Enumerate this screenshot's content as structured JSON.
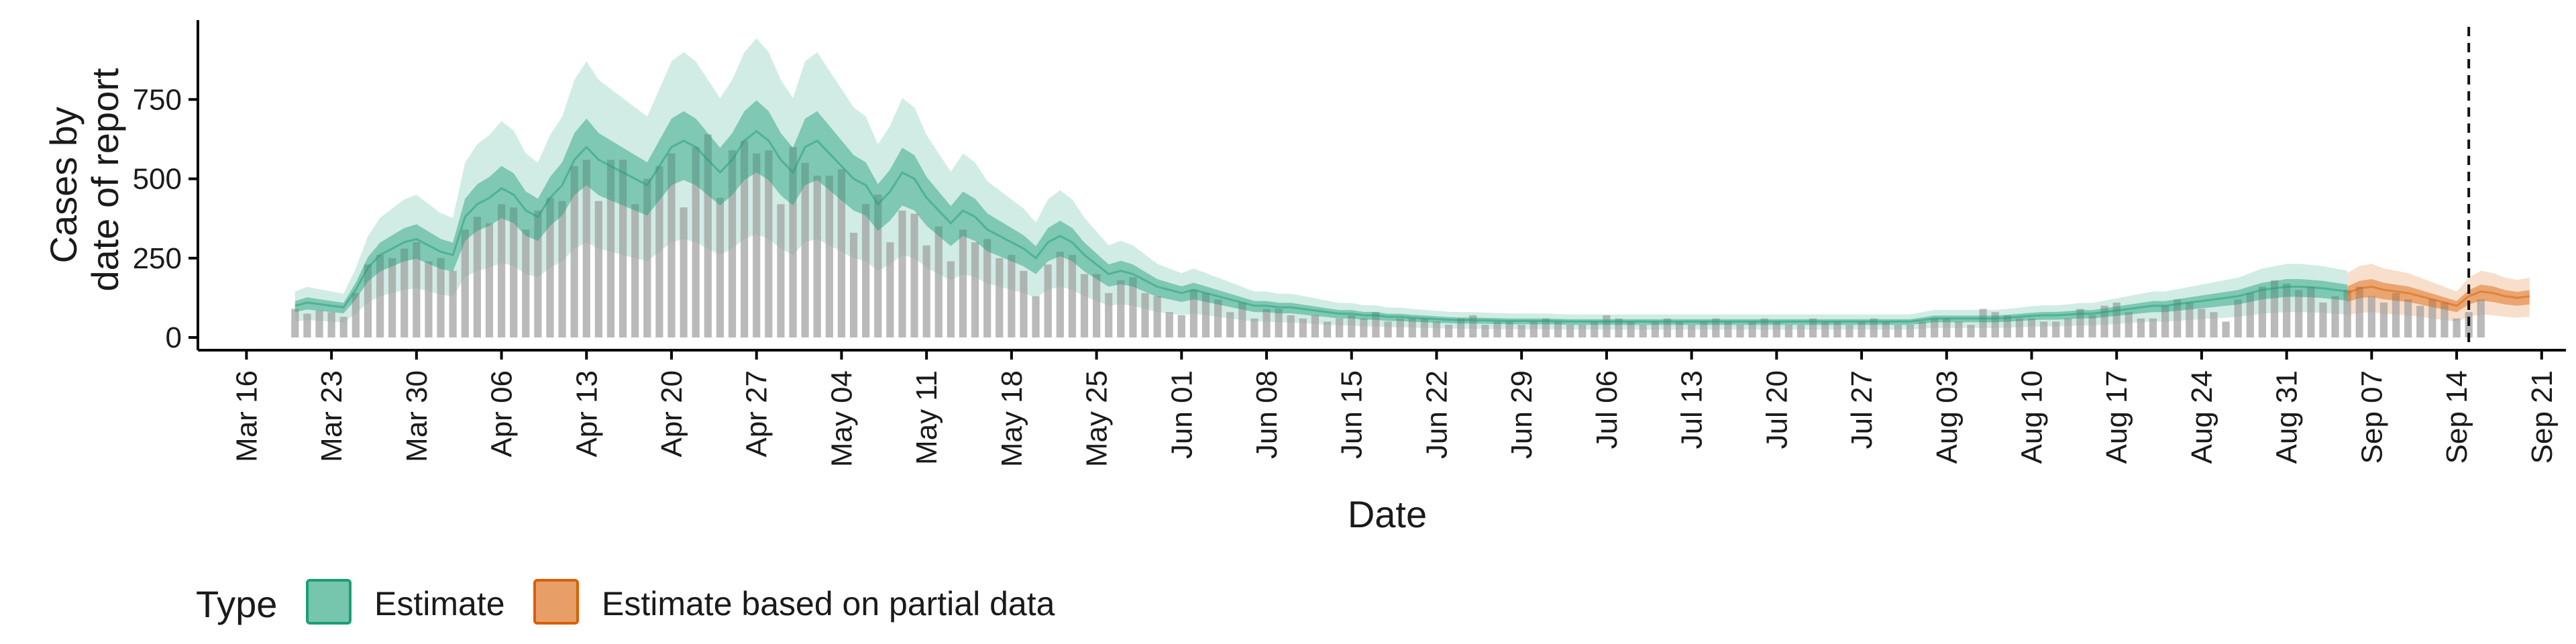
{
  "chart_data": {
    "type": "bar",
    "xlabel": "Date",
    "ylabel_lines": [
      "Cases by",
      "date of report"
    ],
    "yticks": [
      0,
      250,
      500,
      750
    ],
    "ylim": [
      -40,
      1000
    ],
    "xlim": [
      "2020-03-12",
      "2020-09-23"
    ],
    "x_tick_labels": [
      "Mar 16",
      "Mar 23",
      "Mar 30",
      "Apr 06",
      "Apr 13",
      "Apr 20",
      "Apr 27",
      "May 04",
      "May 11",
      "May 18",
      "May 25",
      "Jun 01",
      "Jun 08",
      "Jun 15",
      "Jun 22",
      "Jun 29",
      "Jul 06",
      "Jul 13",
      "Jul 20",
      "Jul 27",
      "Aug 03",
      "Aug 10",
      "Aug 17",
      "Aug 24",
      "Aug 31",
      "Sep 07",
      "Sep 14",
      "Sep 21"
    ],
    "x_tick_dates": [
      "2020-03-16",
      "2020-03-23",
      "2020-03-30",
      "2020-04-06",
      "2020-04-13",
      "2020-04-20",
      "2020-04-27",
      "2020-05-04",
      "2020-05-11",
      "2020-05-18",
      "2020-05-25",
      "2020-06-01",
      "2020-06-08",
      "2020-06-15",
      "2020-06-22",
      "2020-06-29",
      "2020-07-06",
      "2020-07-13",
      "2020-07-20",
      "2020-07-27",
      "2020-08-03",
      "2020-08-10",
      "2020-08-17",
      "2020-08-24",
      "2020-08-31",
      "2020-09-07",
      "2020-09-14",
      "2020-09-21"
    ],
    "vline_date": "2020-09-15",
    "grid": false,
    "legend_position": "bottom-left",
    "legend_title": "Type",
    "legend_items": [
      {
        "label": "Estimate",
        "color": "#1b9e77"
      },
      {
        "label": "Estimate based on partial data",
        "color": "#d95f02"
      }
    ],
    "colors": {
      "bars": "#a0a0a0",
      "estimate": "#1b9e77",
      "partial": "#d95f02"
    },
    "bars": {
      "start_date": "2020-03-20",
      "values": [
        90,
        75,
        85,
        80,
        65,
        140,
        230,
        260,
        250,
        280,
        300,
        240,
        250,
        210,
        340,
        380,
        360,
        420,
        410,
        340,
        400,
        440,
        430,
        540,
        560,
        430,
        560,
        560,
        420,
        500,
        540,
        580,
        410,
        600,
        640,
        440,
        590,
        620,
        580,
        590,
        420,
        600,
        550,
        510,
        510,
        530,
        330,
        420,
        450,
        300,
        400,
        390,
        290,
        350,
        240,
        340,
        300,
        310,
        250,
        260,
        210,
        130,
        230,
        270,
        260,
        200,
        200,
        140,
        180,
        190,
        140,
        130,
        80,
        70,
        150,
        140,
        120,
        80,
        110,
        60,
        90,
        90,
        70,
        60,
        70,
        50,
        60,
        70,
        60,
        80,
        50,
        60,
        60,
        60,
        50,
        40,
        60,
        70,
        40,
        50,
        50,
        40,
        50,
        60,
        50,
        40,
        40,
        50,
        70,
        60,
        50,
        40,
        50,
        60,
        50,
        40,
        50,
        60,
        50,
        40,
        50,
        60,
        50,
        40,
        40,
        60,
        50,
        50,
        40,
        50,
        60,
        50,
        40,
        40,
        50,
        60,
        60,
        50,
        40,
        90,
        80,
        70,
        60,
        60,
        50,
        50,
        60,
        90,
        70,
        100,
        110,
        80,
        60,
        60,
        100,
        120,
        110,
        90,
        80,
        50,
        120,
        140,
        160,
        180,
        170,
        150,
        160,
        110,
        130,
        150,
        160,
        130,
        110,
        140,
        120,
        100,
        120,
        110,
        60,
        80,
        120
      ]
    },
    "estimate_band": {
      "start_date": "2020-03-20",
      "median": [
        100,
        110,
        105,
        100,
        95,
        150,
        220,
        260,
        280,
        300,
        310,
        290,
        270,
        260,
        380,
        420,
        440,
        470,
        450,
        400,
        380,
        440,
        480,
        560,
        600,
        560,
        540,
        520,
        500,
        480,
        540,
        600,
        620,
        600,
        560,
        520,
        560,
        620,
        650,
        620,
        560,
        520,
        600,
        620,
        580,
        540,
        500,
        480,
        420,
        460,
        520,
        500,
        440,
        400,
        360,
        400,
        380,
        340,
        320,
        300,
        280,
        250,
        300,
        320,
        300,
        260,
        230,
        200,
        210,
        200,
        180,
        160,
        150,
        140,
        150,
        140,
        130,
        120,
        110,
        100,
        100,
        95,
        95,
        90,
        85,
        80,
        75,
        75,
        70,
        70,
        65,
        65,
        62,
        60,
        58,
        56,
        55,
        55,
        54,
        53,
        52,
        52,
        52,
        52,
        51,
        50,
        50,
        50,
        50,
        50,
        50,
        50,
        50,
        50,
        50,
        50,
        50,
        50,
        50,
        50,
        50,
        50,
        50,
        50,
        50,
        50,
        50,
        50,
        50,
        50,
        50,
        50,
        50,
        50,
        55,
        60,
        60,
        60,
        60,
        60,
        60,
        62,
        65,
        68,
        70,
        70,
        72,
        75,
        75,
        80,
        85,
        90,
        95,
        100,
        100,
        105,
        110,
        115,
        120,
        125,
        130,
        140,
        150,
        155,
        160,
        160,
        158,
        155,
        150,
        145
      ],
      "lower90_ratio": 0.5,
      "upper90_ratio": 1.45,
      "lower50_ratio": 0.8,
      "upper50_ratio": 1.15
    },
    "partial_band": {
      "start_date": "2020-09-05",
      "median": [
        140,
        155,
        160,
        150,
        145,
        140,
        130,
        120,
        110,
        100,
        130,
        145,
        140,
        130,
        125,
        130
      ]
    }
  }
}
